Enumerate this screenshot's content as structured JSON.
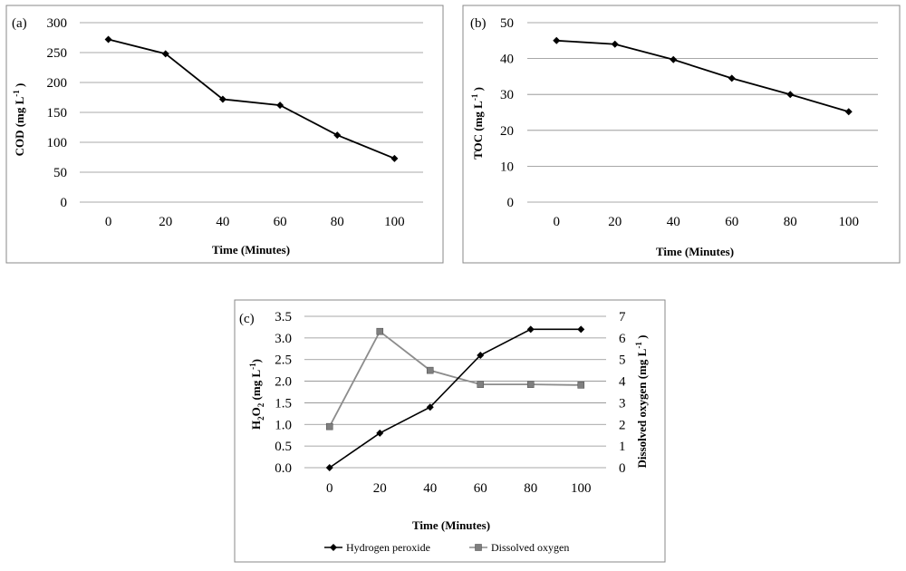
{
  "chart_data": [
    {
      "type": "line",
      "panel_label": "(a)",
      "categories": [
        "0",
        "20",
        "40",
        "60",
        "80",
        "100"
      ],
      "series": [
        {
          "name": "COD",
          "values": [
            272,
            248,
            172,
            162,
            112,
            73
          ]
        }
      ],
      "xlabel": "Time (Minutes)",
      "ylabel": "COD (mg L",
      "ylabel_sup": "-1",
      "ylabel_close": " )",
      "ylim": [
        0,
        300
      ],
      "yticks": [
        "0",
        "50",
        "100",
        "150",
        "200",
        "250",
        "300"
      ],
      "grid": true
    },
    {
      "type": "line",
      "panel_label": "(b)",
      "categories": [
        "0",
        "20",
        "40",
        "60",
        "80",
        "100"
      ],
      "series": [
        {
          "name": "TOC",
          "values": [
            45,
            44,
            39.7,
            34.5,
            30,
            25.2
          ]
        }
      ],
      "xlabel": "Time (Minutes)",
      "ylabel": "TOC  (mg L",
      "ylabel_sup": "-1",
      "ylabel_close": " )",
      "ylim": [
        0,
        50
      ],
      "yticks": [
        "0",
        "10",
        "20",
        "30",
        "40",
        "50"
      ],
      "grid": true
    },
    {
      "type": "line",
      "panel_label": "(c)",
      "categories": [
        "0",
        "20",
        "40",
        "60",
        "80",
        "100"
      ],
      "series": [
        {
          "name": "Hydrogen peroxide",
          "axis": "left",
          "values": [
            0,
            0.8,
            1.4,
            2.6,
            3.2,
            3.2
          ]
        },
        {
          "name": "Dissolved oxygen",
          "axis": "right",
          "values": [
            1.9,
            6.3,
            4.5,
            3.85,
            3.85,
            3.82
          ]
        }
      ],
      "xlabel": "Time (Minutes)",
      "ylabel_left_parts": [
        "H",
        "2",
        "O",
        "2",
        "  (mg L",
        "-1",
        ")"
      ],
      "ylabel_right": "Dissolved oxygen  (mg L",
      "ylabel_right_sup": "-1",
      "ylabel_right_close": " )",
      "ylim_left": [
        0,
        3.5
      ],
      "ylim_right": [
        0,
        7
      ],
      "yticks_left": [
        "0.0",
        "0.5",
        "1.0",
        "1.5",
        "2.0",
        "2.5",
        "3.0",
        "3.5"
      ],
      "yticks_right": [
        "0",
        "1",
        "2",
        "3",
        "4",
        "5",
        "6",
        "7"
      ],
      "legend": [
        "Hydrogen peroxide",
        "Dissolved oxygen"
      ],
      "legend_position": "bottom",
      "grid": true
    }
  ],
  "colors": {
    "line": "#000000",
    "marker_square": "#7f7f7f",
    "line_gray": "#8c8c8c",
    "grid": "#8c8c8c",
    "frame": "#888888"
  }
}
